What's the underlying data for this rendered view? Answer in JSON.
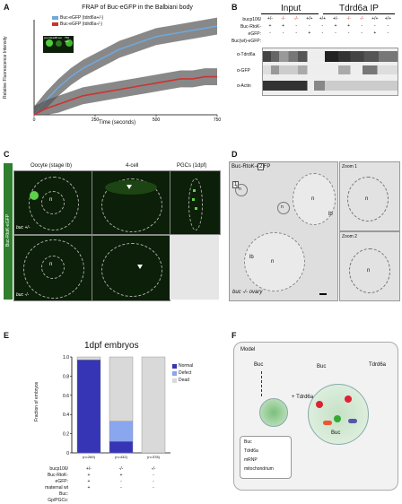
{
  "panels": {
    "A": {
      "letter": "A",
      "title": "FRAP of Buc-eGFP in the Balbiani body",
      "legend": [
        "Buc-eGFP (tdrd6a+/-)",
        "Buc-eGFP (tdrd6a-/-)"
      ],
      "series_colors": [
        "#6fa8dc",
        "#cc3333"
      ],
      "xlabel": "Time (seconds)",
      "ylabel": "Relative Fluorescence Intensity",
      "xticks": [
        "0",
        "250",
        "500",
        "750"
      ],
      "inset_labels": [
        "pre-bleach",
        "0 sec",
        "750 sec"
      ]
    },
    "B": {
      "letter": "B",
      "header_input": "Input",
      "header_ip": "Tdrd6a IP",
      "row_labels": [
        "bucp106/",
        "Buc-RtoK-eGFP:",
        "Buc(wt)-eGFP:"
      ],
      "genotype_row": [
        "+/-",
        "-/-",
        "-/-",
        "+/+",
        "+/+",
        "+/-",
        "-/-",
        "-/-",
        "+/+",
        "+/+"
      ],
      "rtok_row": [
        "+",
        "+",
        "-",
        "-",
        "-",
        "+",
        "+",
        "-",
        "-",
        "-"
      ],
      "wt_row": [
        "-",
        "-",
        "-",
        "+",
        "-",
        "-",
        "-",
        "-",
        "+",
        "-"
      ],
      "blots": [
        "α-Tdrd6a",
        "α-GFP",
        "α-Actin"
      ]
    },
    "C": {
      "letter": "C",
      "columns": [
        "Oocyte (stage Ib)",
        "4-cell",
        "PGCs (1dpf)"
      ],
      "side_label": "Buc-RtoK-eGFP",
      "row_labels": [
        "buc +/-",
        "buc -/-"
      ],
      "nucleus": "n"
    },
    "D": {
      "letter": "D",
      "title": "Buc-RtoK-eGFP",
      "caption": "buc -/- ovary",
      "zoom1": "Zoom 1",
      "zoom2": "Zoom 2",
      "nucleus": "n",
      "lb": "lb",
      "inset_nums": [
        "1",
        "2"
      ]
    },
    "E": {
      "letter": "E",
      "title": "1dpf embryos",
      "ylabel": "Fraction of embryos",
      "yticks": [
        "0",
        "0.2",
        "0.4",
        "0.6",
        "0.8",
        "1.0"
      ],
      "n_labels": [
        "(n=269)",
        "(n=432)",
        "(n=378)"
      ],
      "row_labels": [
        "bucp106/",
        "Buc-RtoK-eGFP:",
        "maternal wt Buc:",
        "Gp/PGCs:"
      ],
      "row_values": [
        [
          "+/-",
          "-/-",
          "-/-"
        ],
        [
          "+",
          "+",
          "-"
        ],
        [
          "+",
          "-",
          "-"
        ],
        [
          "+",
          "-",
          "-"
        ]
      ],
      "legend": [
        "Normal",
        "Defect",
        "Dead"
      ],
      "legend_colors": [
        "#3535b5",
        "#8aa6ee",
        "#d9d9d9"
      ]
    },
    "F": {
      "letter": "F",
      "title": "Model",
      "labels": {
        "buc1": "Buc",
        "buc2": "Buc",
        "buc3": "Buc",
        "tdrd6a": "Tdrd6a",
        "plus": "+ Tdrd6a"
      },
      "legend": [
        "Buc",
        "Tdrd6a",
        "mRNP",
        "mitochondrium"
      ]
    }
  },
  "chart_data": [
    {
      "type": "line",
      "title": "FRAP of Buc-eGFP in the Balbiani body",
      "xlabel": "Time (seconds)",
      "ylabel": "Relative Fluorescence Intensity",
      "xlim": [
        0,
        750
      ],
      "series": [
        {
          "name": "Buc-eGFP (tdrd6a+/-)",
          "x": [
            0,
            50,
            100,
            150,
            200,
            250,
            300,
            350,
            400,
            450,
            500,
            550,
            600,
            650,
            700,
            750
          ],
          "y": [
            0.0,
            0.07,
            0.13,
            0.18,
            0.22,
            0.25,
            0.28,
            0.31,
            0.33,
            0.35,
            0.37,
            0.38,
            0.39,
            0.4,
            0.41,
            0.42
          ]
        },
        {
          "name": "Buc-eGFP (tdrd6a-/-)",
          "x": [
            0,
            50,
            100,
            150,
            200,
            250,
            300,
            350,
            400,
            450,
            500,
            550,
            600,
            650,
            700,
            750
          ],
          "y": [
            0.0,
            0.03,
            0.05,
            0.07,
            0.09,
            0.1,
            0.11,
            0.12,
            0.13,
            0.14,
            0.15,
            0.16,
            0.17,
            0.17,
            0.18,
            0.18
          ]
        }
      ]
    },
    {
      "type": "bar",
      "title": "1dpf embryos",
      "ylabel": "Fraction of embryos",
      "ylim": [
        0,
        1
      ],
      "categories": [
        "+/-",
        "-/-",
        "-/-"
      ],
      "series": [
        {
          "name": "Normal",
          "values": [
            0.97,
            0.12,
            0.0
          ]
        },
        {
          "name": "Defect",
          "values": [
            0.0,
            0.21,
            0.0
          ]
        },
        {
          "name": "Dead",
          "values": [
            0.03,
            0.67,
            1.0
          ]
        }
      ]
    }
  ]
}
